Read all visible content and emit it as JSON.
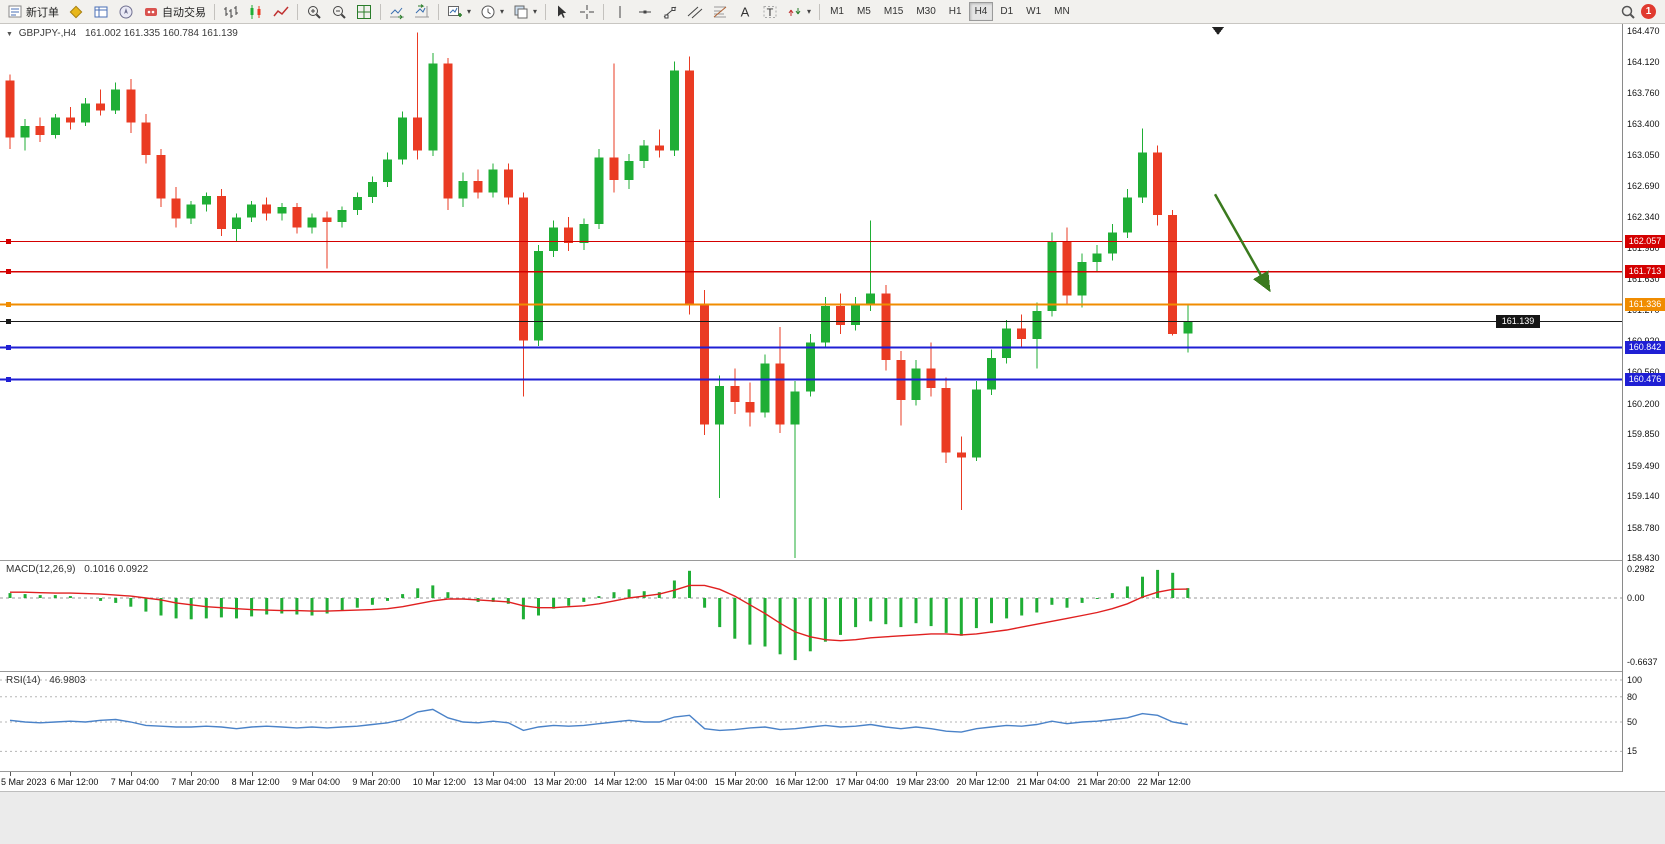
{
  "toolbar": {
    "new_order": "新订单",
    "autotrading": "自动交易",
    "timeframes": [
      "M1",
      "M5",
      "M15",
      "M30",
      "H1",
      "H4",
      "D1",
      "W1",
      "MN"
    ],
    "active_timeframe": "H4",
    "notification_count": "1"
  },
  "chart": {
    "title": "GBPJPY-,H4",
    "ohlc": "161.002 161.335 160.784 161.139"
  },
  "macd_label": "MACD(12,26,9)",
  "macd_values": "0.1016 0.0922",
  "rsi_label": "RSI(14)",
  "rsi_value": "46.9803",
  "chart_data": {
    "type": "candlestick",
    "symbol": "GBPJPY-",
    "timeframe": "H4",
    "title": "GBPJPY-,H4",
    "current_ohlc": {
      "open": 161.002,
      "high": 161.335,
      "low": 160.784,
      "close": 161.139
    },
    "colors": {
      "bull": "#1fae35",
      "bear": "#ea3b23",
      "macd_hist": "#1fae35",
      "macd_signal": "#e02020",
      "rsi": "#4a82c8",
      "arrow": "#3a7a1e"
    },
    "price_axis": {
      "min": 158.43,
      "max": 164.47,
      "ticks": [
        "164.470",
        "164.120",
        "163.760",
        "163.400",
        "163.050",
        "162.690",
        "162.340",
        "161.980",
        "161.630",
        "161.270",
        "160.920",
        "160.560",
        "160.200",
        "159.850",
        "159.490",
        "159.140",
        "158.780",
        "158.430"
      ]
    },
    "time_labels": [
      "5 Mar 2023",
      "6 Mar 12:00",
      "7 Mar 04:00",
      "7 Mar 20:00",
      "8 Mar 12:00",
      "9 Mar 04:00",
      "9 Mar 20:00",
      "10 Mar 12:00",
      "13 Mar 04:00",
      "13 Mar 20:00",
      "14 Mar 12:00",
      "15 Mar 04:00",
      "15 Mar 20:00",
      "16 Mar 12:00",
      "17 Mar 04:00",
      "19 Mar 23:00",
      "20 Mar 12:00",
      "21 Mar 04:00",
      "21 Mar 20:00",
      "22 Mar 12:00"
    ],
    "candles": [
      [
        163.9,
        163.97,
        163.12,
        163.25
      ],
      [
        163.25,
        163.46,
        163.1,
        163.38
      ],
      [
        163.38,
        163.48,
        163.2,
        163.28
      ],
      [
        163.28,
        163.52,
        163.24,
        163.48
      ],
      [
        163.48,
        163.6,
        163.34,
        163.42
      ],
      [
        163.42,
        163.7,
        163.38,
        163.64
      ],
      [
        163.64,
        163.8,
        163.5,
        163.56
      ],
      [
        163.56,
        163.88,
        163.52,
        163.8
      ],
      [
        163.8,
        163.92,
        163.3,
        163.42
      ],
      [
        163.42,
        163.52,
        162.95,
        163.05
      ],
      [
        163.05,
        163.12,
        162.45,
        162.55
      ],
      [
        162.55,
        162.68,
        162.22,
        162.32
      ],
      [
        162.32,
        162.52,
        162.26,
        162.48
      ],
      [
        162.48,
        162.62,
        162.4,
        162.58
      ],
      [
        162.58,
        162.66,
        162.12,
        162.2
      ],
      [
        162.2,
        162.38,
        162.05,
        162.33
      ],
      [
        162.33,
        162.52,
        162.28,
        162.48
      ],
      [
        162.48,
        162.56,
        162.3,
        162.38
      ],
      [
        162.38,
        162.5,
        162.3,
        162.45
      ],
      [
        162.45,
        162.5,
        162.15,
        162.22
      ],
      [
        162.22,
        162.38,
        162.15,
        162.33
      ],
      [
        162.33,
        162.4,
        161.75,
        162.28
      ],
      [
        162.28,
        162.46,
        162.22,
        162.42
      ],
      [
        162.42,
        162.62,
        162.36,
        162.57
      ],
      [
        162.57,
        162.8,
        162.5,
        162.74
      ],
      [
        162.74,
        163.08,
        162.68,
        163.0
      ],
      [
        163.0,
        163.55,
        162.94,
        163.48
      ],
      [
        163.48,
        164.45,
        163.0,
        163.1
      ],
      [
        163.1,
        164.22,
        163.04,
        164.1
      ],
      [
        164.1,
        164.16,
        162.42,
        162.55
      ],
      [
        162.55,
        162.85,
        162.45,
        162.75
      ],
      [
        162.75,
        162.88,
        162.55,
        162.62
      ],
      [
        162.62,
        162.95,
        162.56,
        162.88
      ],
      [
        162.88,
        162.95,
        162.48,
        162.56
      ],
      [
        162.56,
        162.62,
        160.28,
        160.92
      ],
      [
        160.92,
        162.02,
        160.86,
        161.95
      ],
      [
        161.95,
        162.3,
        161.88,
        162.22
      ],
      [
        162.22,
        162.34,
        161.95,
        162.04
      ],
      [
        162.04,
        162.32,
        161.96,
        162.26
      ],
      [
        162.26,
        163.12,
        162.2,
        163.02
      ],
      [
        163.02,
        164.1,
        162.62,
        162.76
      ],
      [
        162.76,
        163.06,
        162.66,
        162.98
      ],
      [
        162.98,
        163.22,
        162.9,
        163.16
      ],
      [
        163.16,
        163.34,
        163.02,
        163.1
      ],
      [
        163.1,
        164.12,
        163.04,
        164.02
      ],
      [
        164.02,
        164.18,
        161.22,
        161.34
      ],
      [
        161.34,
        161.5,
        159.84,
        159.96
      ],
      [
        159.96,
        160.52,
        159.12,
        160.4
      ],
      [
        160.4,
        160.6,
        160.08,
        160.22
      ],
      [
        160.22,
        160.44,
        159.94,
        160.1
      ],
      [
        160.1,
        160.76,
        160.04,
        160.66
      ],
      [
        160.66,
        161.08,
        159.86,
        159.96
      ],
      [
        159.96,
        160.46,
        158.43,
        160.34
      ],
      [
        160.34,
        161.0,
        160.28,
        160.9
      ],
      [
        160.9,
        161.42,
        160.84,
        161.32
      ],
      [
        161.32,
        161.46,
        161.0,
        161.1
      ],
      [
        161.1,
        161.42,
        161.04,
        161.34
      ],
      [
        161.34,
        162.3,
        161.26,
        161.46
      ],
      [
        161.46,
        161.56,
        160.58,
        160.7
      ],
      [
        160.7,
        160.8,
        159.95,
        160.24
      ],
      [
        160.24,
        160.7,
        160.18,
        160.6
      ],
      [
        160.6,
        160.9,
        160.28,
        160.38
      ],
      [
        160.38,
        160.5,
        159.52,
        159.64
      ],
      [
        159.64,
        159.82,
        158.98,
        159.58
      ],
      [
        159.58,
        160.46,
        159.54,
        160.36
      ],
      [
        160.36,
        160.82,
        160.3,
        160.72
      ],
      [
        160.72,
        161.16,
        160.66,
        161.06
      ],
      [
        161.06,
        161.22,
        160.84,
        160.94
      ],
      [
        160.94,
        161.36,
        160.6,
        161.26
      ],
      [
        161.26,
        162.16,
        161.2,
        162.06
      ],
      [
        162.06,
        162.22,
        161.34,
        161.44
      ],
      [
        161.44,
        161.92,
        161.3,
        161.82
      ],
      [
        161.82,
        162.02,
        161.7,
        161.92
      ],
      [
        161.92,
        162.26,
        161.84,
        162.16
      ],
      [
        162.16,
        162.66,
        162.1,
        162.56
      ],
      [
        162.56,
        163.35,
        162.5,
        163.08
      ],
      [
        163.08,
        163.16,
        162.24,
        162.36
      ],
      [
        162.36,
        162.42,
        160.98,
        161.0
      ],
      [
        161.002,
        161.335,
        160.784,
        161.139
      ]
    ],
    "hlines": [
      {
        "price": 162.057,
        "label": "162.057",
        "color": "#d40000"
      },
      {
        "price": 161.713,
        "label": "161.713",
        "color": "#d40000"
      },
      {
        "price": 161.336,
        "label": "161.336",
        "color": "#f08c00"
      },
      {
        "price": 161.139,
        "label": "161.139",
        "color": "#1a1a1a",
        "current": true
      },
      {
        "price": 160.842,
        "label": "160.842",
        "color": "#1f1fd4"
      },
      {
        "price": 160.476,
        "label": "160.476",
        "color": "#1f1fd4"
      }
    ],
    "arrow_annotation": {
      "start": {
        "index": 79.8,
        "price": 162.6
      },
      "end": {
        "index": 83.4,
        "price": 161.5
      }
    },
    "macd": {
      "axis": [
        "0.2982",
        "0.00",
        "-0.6637"
      ],
      "max": 0.2982,
      "min": -0.6637,
      "histogram": [
        0.05,
        0.04,
        0.03,
        0.03,
        0.02,
        0.0,
        -0.03,
        -0.05,
        -0.09,
        -0.14,
        -0.18,
        -0.21,
        -0.22,
        -0.21,
        -0.2,
        -0.21,
        -0.19,
        -0.17,
        -0.16,
        -0.17,
        -0.18,
        -0.16,
        -0.13,
        -0.1,
        -0.07,
        -0.03,
        0.04,
        0.1,
        0.13,
        0.06,
        0.0,
        -0.04,
        -0.04,
        -0.06,
        -0.22,
        -0.18,
        -0.11,
        -0.08,
        -0.04,
        0.02,
        0.06,
        0.09,
        0.07,
        0.06,
        0.18,
        0.28,
        -0.1,
        -0.3,
        -0.42,
        -0.48,
        -0.5,
        -0.58,
        -0.64,
        -0.55,
        -0.45,
        -0.38,
        -0.3,
        -0.24,
        -0.27,
        -0.3,
        -0.26,
        -0.29,
        -0.36,
        -0.39,
        -0.31,
        -0.26,
        -0.21,
        -0.18,
        -0.15,
        -0.07,
        -0.1,
        -0.05,
        -0.01,
        0.05,
        0.12,
        0.22,
        0.29,
        0.26,
        0.1016
      ],
      "signal": [
        0.06,
        0.06,
        0.055,
        0.05,
        0.05,
        0.045,
        0.04,
        0.03,
        0.02,
        0.0,
        -0.02,
        -0.05,
        -0.07,
        -0.09,
        -0.1,
        -0.11,
        -0.12,
        -0.125,
        -0.13,
        -0.13,
        -0.135,
        -0.135,
        -0.13,
        -0.125,
        -0.12,
        -0.11,
        -0.09,
        -0.06,
        -0.03,
        -0.01,
        -0.01,
        -0.02,
        -0.03,
        -0.04,
        -0.08,
        -0.1,
        -0.1,
        -0.09,
        -0.08,
        -0.06,
        -0.03,
        0.0,
        0.02,
        0.04,
        0.08,
        0.13,
        0.13,
        0.09,
        0.02,
        -0.07,
        -0.16,
        -0.26,
        -0.35,
        -0.4,
        -0.43,
        -0.44,
        -0.43,
        -0.41,
        -0.4,
        -0.39,
        -0.38,
        -0.37,
        -0.37,
        -0.38,
        -0.37,
        -0.35,
        -0.33,
        -0.3,
        -0.27,
        -0.24,
        -0.21,
        -0.18,
        -0.15,
        -0.11,
        -0.06,
        0.01,
        0.06,
        0.09,
        0.0922
      ]
    },
    "rsi": {
      "levels": [
        "100",
        "80",
        "50",
        "15"
      ],
      "values": [
        52,
        50,
        49,
        50,
        51,
        50,
        52,
        53,
        50,
        46,
        45,
        44,
        44,
        45,
        44,
        42,
        44,
        45,
        44,
        43,
        44,
        43,
        44,
        45,
        47,
        49,
        53,
        62,
        65,
        55,
        50,
        49,
        51,
        49,
        40,
        44,
        46,
        45,
        46,
        48,
        50,
        52,
        50,
        50,
        56,
        58,
        42,
        40,
        41,
        43,
        44,
        41,
        42,
        44,
        46,
        44,
        45,
        47,
        44,
        42,
        44,
        42,
        39,
        38,
        42,
        44,
        46,
        45,
        47,
        51,
        48,
        50,
        51,
        53,
        55,
        60,
        58,
        50,
        46.98
      ]
    }
  }
}
